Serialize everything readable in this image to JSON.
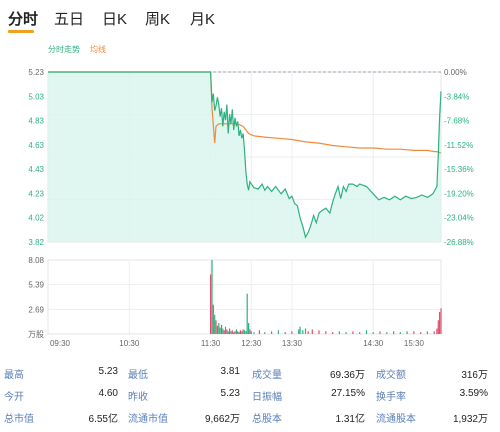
{
  "tabs": [
    {
      "label": "分时",
      "active": true
    },
    {
      "label": "五日",
      "active": false
    },
    {
      "label": "日K",
      "active": false
    },
    {
      "label": "周K",
      "active": false
    },
    {
      "label": "月K",
      "active": false
    }
  ],
  "chart_data": {
    "type": "line",
    "legend": [
      "分时走势",
      "均线"
    ],
    "price_ticks": [
      "5.23",
      "5.03",
      "4.83",
      "4.63",
      "4.43",
      "4.23",
      "4.02",
      "3.82"
    ],
    "pct_ticks": [
      "0.00%",
      "-3.84%",
      "-7.68%",
      "-11.52%",
      "-15.36%",
      "-19.20%",
      "-23.04%",
      "-26.88%"
    ],
    "volume_ticks": [
      "8.08",
      "5.39",
      "2.69",
      "万股"
    ],
    "time_ticks": [
      "09:30",
      "10:30",
      "11:30",
      "12:30",
      "13:30",
      "14:30",
      "15:30"
    ],
    "ylim": [
      3.82,
      5.23
    ],
    "prev_close": 5.23,
    "colors": {
      "price": "#2db17e",
      "avg": "#f08a3c",
      "fill": "#d8f5ee",
      "up": "#e0506a",
      "down": "#2db17e",
      "ref": "#8888aa"
    },
    "price_series": [
      [
        0,
        5.23
      ],
      [
        30,
        5.23
      ],
      [
        60,
        5.23
      ],
      [
        90,
        5.23
      ],
      [
        118,
        5.23
      ],
      [
        120,
        5.23
      ],
      [
        121,
        4.98
      ],
      [
        122,
        5.05
      ],
      [
        123,
        4.91
      ],
      [
        124,
        4.95
      ],
      [
        125,
        5.02
      ],
      [
        126,
        4.96
      ],
      [
        127,
        4.86
      ],
      [
        128,
        4.93
      ],
      [
        129,
        4.78
      ],
      [
        130,
        4.9
      ],
      [
        131,
        4.83
      ],
      [
        132,
        4.96
      ],
      [
        133,
        4.72
      ],
      [
        134,
        4.88
      ],
      [
        135,
        4.8
      ],
      [
        136,
        4.92
      ],
      [
        137,
        4.75
      ],
      [
        138,
        4.85
      ],
      [
        139,
        4.78
      ],
      [
        140,
        4.82
      ],
      [
        141,
        4.7
      ],
      [
        142,
        4.75
      ],
      [
        143,
        4.68
      ],
      [
        144,
        4.72
      ],
      [
        145,
        4.58
      ],
      [
        146,
        4.4
      ],
      [
        147,
        4.3
      ],
      [
        148,
        4.25
      ],
      [
        149,
        4.32
      ],
      [
        150,
        4.3
      ],
      [
        152,
        4.27
      ],
      [
        155,
        4.26
      ],
      [
        158,
        4.3
      ],
      [
        160,
        4.25
      ],
      [
        162,
        4.28
      ],
      [
        165,
        4.24
      ],
      [
        168,
        4.28
      ],
      [
        172,
        4.22
      ],
      [
        175,
        4.26
      ],
      [
        178,
        4.18
      ],
      [
        180,
        4.2
      ],
      [
        182,
        4.14
      ],
      [
        184,
        4.12
      ],
      [
        186,
        4.02
      ],
      [
        188,
        3.95
      ],
      [
        190,
        3.86
      ],
      [
        192,
        3.9
      ],
      [
        194,
        3.96
      ],
      [
        196,
        4.04
      ],
      [
        198,
        3.98
      ],
      [
        200,
        4.06
      ],
      [
        202,
        4.08
      ],
      [
        205,
        4.1
      ],
      [
        208,
        4.06
      ],
      [
        210,
        4.15
      ],
      [
        212,
        4.22
      ],
      [
        214,
        4.28
      ],
      [
        216,
        4.18
      ],
      [
        218,
        4.28
      ],
      [
        220,
        4.24
      ],
      [
        222,
        4.3
      ],
      [
        225,
        4.3
      ],
      [
        228,
        4.28
      ],
      [
        230,
        4.3
      ],
      [
        235,
        4.28
      ],
      [
        240,
        4.22
      ],
      [
        244,
        4.17
      ],
      [
        248,
        4.19
      ],
      [
        252,
        4.17
      ],
      [
        256,
        4.2
      ],
      [
        260,
        4.17
      ],
      [
        264,
        4.2
      ],
      [
        268,
        4.18
      ],
      [
        272,
        4.19
      ],
      [
        276,
        4.21
      ],
      [
        280,
        4.19
      ],
      [
        284,
        4.22
      ],
      [
        287,
        4.28
      ],
      [
        288,
        4.55
      ],
      [
        289,
        4.85
      ],
      [
        290,
        5.07
      ]
    ],
    "avg_series": [
      [
        0,
        5.23
      ],
      [
        118,
        5.23
      ],
      [
        120,
        5.23
      ],
      [
        121,
        4.93
      ],
      [
        123,
        4.64
      ],
      [
        124,
        4.78
      ],
      [
        126,
        4.8
      ],
      [
        130,
        4.8
      ],
      [
        140,
        4.8
      ],
      [
        144,
        4.78
      ],
      [
        148,
        4.72
      ],
      [
        152,
        4.7
      ],
      [
        160,
        4.69
      ],
      [
        170,
        4.68
      ],
      [
        180,
        4.67
      ],
      [
        190,
        4.65
      ],
      [
        200,
        4.64
      ],
      [
        210,
        4.62
      ],
      [
        220,
        4.61
      ],
      [
        230,
        4.6
      ],
      [
        240,
        4.6
      ],
      [
        250,
        4.59
      ],
      [
        260,
        4.59
      ],
      [
        270,
        4.58
      ],
      [
        280,
        4.58
      ],
      [
        285,
        4.57
      ],
      [
        287,
        4.57
      ],
      [
        289,
        4.56
      ],
      [
        290,
        4.56
      ]
    ],
    "volume": [
      [
        120,
        6.5
      ],
      [
        121,
        8.08
      ],
      [
        122,
        3.2
      ],
      [
        123,
        2.1
      ],
      [
        124,
        1.5
      ],
      [
        125,
        0.9
      ],
      [
        126,
        1.2
      ],
      [
        127,
        0.7
      ],
      [
        128,
        1.0
      ],
      [
        129,
        0.6
      ],
      [
        130,
        0.4
      ],
      [
        131,
        0.8
      ],
      [
        132,
        0.5
      ],
      [
        133,
        0.3
      ],
      [
        134,
        0.6
      ],
      [
        135,
        0.3
      ],
      [
        136,
        0.4
      ],
      [
        137,
        0.2
      ],
      [
        138,
        0.3
      ],
      [
        139,
        0.5
      ],
      [
        140,
        0.3
      ],
      [
        141,
        0.2
      ],
      [
        142,
        0.4
      ],
      [
        143,
        0.3
      ],
      [
        144,
        0.5
      ],
      [
        145,
        0.4
      ],
      [
        146,
        0.3
      ],
      [
        147,
        4.4
      ],
      [
        148,
        1.2
      ],
      [
        149,
        0.5
      ],
      [
        150,
        0.3
      ],
      [
        152,
        0.2
      ],
      [
        156,
        0.4
      ],
      [
        160,
        0.2
      ],
      [
        165,
        0.3
      ],
      [
        170,
        0.4
      ],
      [
        175,
        0.2
      ],
      [
        180,
        0.3
      ],
      [
        185,
        0.5
      ],
      [
        186,
        0.8
      ],
      [
        188,
        0.4
      ],
      [
        190,
        0.6
      ],
      [
        192,
        0.3
      ],
      [
        195,
        0.5
      ],
      [
        200,
        0.4
      ],
      [
        205,
        0.3
      ],
      [
        210,
        0.2
      ],
      [
        215,
        0.3
      ],
      [
        220,
        0.2
      ],
      [
        225,
        0.3
      ],
      [
        230,
        0.2
      ],
      [
        235,
        0.4
      ],
      [
        240,
        0.2
      ],
      [
        245,
        0.3
      ],
      [
        250,
        0.2
      ],
      [
        255,
        0.3
      ],
      [
        260,
        0.2
      ],
      [
        265,
        0.3
      ],
      [
        270,
        0.3
      ],
      [
        275,
        0.2
      ],
      [
        280,
        0.3
      ],
      [
        285,
        0.3
      ],
      [
        287,
        0.6
      ],
      [
        288,
        1.5
      ],
      [
        289,
        2.4
      ],
      [
        290,
        2.8
      ]
    ]
  },
  "stats": [
    [
      {
        "label": "最高",
        "value": "5.23"
      },
      {
        "label": "最低",
        "value": "3.81"
      },
      {
        "label": "成交量",
        "value": "69.36万"
      },
      {
        "label": "成交额",
        "value": "316万"
      }
    ],
    [
      {
        "label": "今开",
        "value": "4.60"
      },
      {
        "label": "昨收",
        "value": "5.23"
      },
      {
        "label": "日振幅",
        "value": "27.15%"
      },
      {
        "label": "换手率",
        "value": "3.59%"
      }
    ],
    [
      {
        "label": "总市值",
        "value": "6.55亿"
      },
      {
        "label": "流通市值",
        "value": "9,662万"
      },
      {
        "label": "总股本",
        "value": "1.31亿"
      },
      {
        "label": "流通股本",
        "value": "1,932万"
      }
    ]
  ]
}
